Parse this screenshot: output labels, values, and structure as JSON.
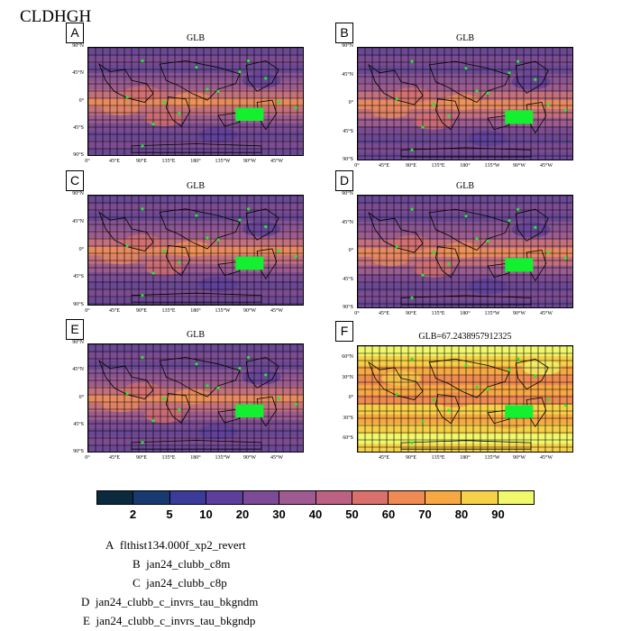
{
  "page_title": "CLDHGH",
  "panels": [
    {
      "title": "GLB",
      "letter": "A"
    },
    {
      "title": "GLB",
      "letter": "B"
    },
    {
      "title": "GLB",
      "letter": "C"
    },
    {
      "title": "GLB",
      "letter": "D"
    },
    {
      "title": "GLB",
      "letter": "E"
    },
    {
      "title": "GLB=67.2438957912325",
      "letter": "F"
    }
  ],
  "lat_labels_ae": [
    "90°N",
    "45°N",
    "0°",
    "45°S",
    "90°S"
  ],
  "lat_labels_f": [
    "60°N",
    "30°N",
    "0°",
    "30°S",
    "60°S"
  ],
  "lon_labels_ae": [
    "0°",
    "45°E",
    "90°E",
    "135°E",
    "180°",
    "135°W",
    "90°W",
    "45°W"
  ],
  "lon_labels_f": [
    "45°E",
    "90°E",
    "135°E",
    "180°",
    "135°W",
    "90°W",
    "45°W"
  ],
  "colorbar": {
    "levels": [
      "2",
      "5",
      "10",
      "20",
      "30",
      "40",
      "50",
      "60",
      "70",
      "80",
      "90"
    ],
    "colors": [
      "#0c2a3d",
      "#193a70",
      "#3b3b9a",
      "#5b3f9b",
      "#7d4a97",
      "#9e5a91",
      "#bb6283",
      "#d9706c",
      "#ef8a52",
      "#f7a843",
      "#f6d148",
      "#f0f86c"
    ]
  },
  "legend": [
    {
      "letter": "A",
      "text": "flthist134.000f_xp2_revert"
    },
    {
      "letter": "B",
      "text": "jan24_clubb_c8m"
    },
    {
      "letter": "C",
      "text": "jan24_clubb_c8p"
    },
    {
      "letter": "D",
      "text": "jan24_clubb_c_invrs_tau_bkgndm"
    },
    {
      "letter": "E",
      "text": "jan24_clubb_c_invrs_tau_bkgndp"
    }
  ],
  "icons": {
    "station_marker": "green-plus-icon"
  }
}
